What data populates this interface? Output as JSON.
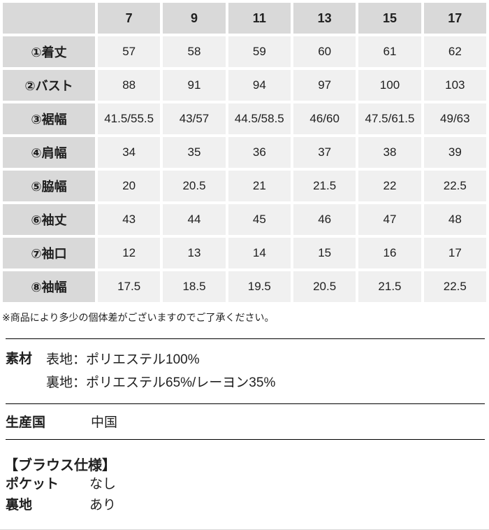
{
  "size_table": {
    "corner_label": "",
    "sizes": [
      "7",
      "9",
      "11",
      "13",
      "15",
      "17"
    ],
    "rows": [
      {
        "label": "①着丈",
        "values": [
          "57",
          "58",
          "59",
          "60",
          "61",
          "62"
        ]
      },
      {
        "label": "②バスト",
        "values": [
          "88",
          "91",
          "94",
          "97",
          "100",
          "103"
        ]
      },
      {
        "label": "③裾幅",
        "values": [
          "41.5/55.5",
          "43/57",
          "44.5/58.5",
          "46/60",
          "47.5/61.5",
          "49/63"
        ]
      },
      {
        "label": "④肩幅",
        "values": [
          "34",
          "35",
          "36",
          "37",
          "38",
          "39"
        ]
      },
      {
        "label": "⑤脇幅",
        "values": [
          "20",
          "20.5",
          "21",
          "21.5",
          "22",
          "22.5"
        ]
      },
      {
        "label": "⑥袖丈",
        "values": [
          "43",
          "44",
          "45",
          "46",
          "47",
          "48"
        ]
      },
      {
        "label": "⑦袖口",
        "values": [
          "12",
          "13",
          "14",
          "15",
          "16",
          "17"
        ]
      },
      {
        "label": "⑧袖幅",
        "values": [
          "17.5",
          "18.5",
          "19.5",
          "20.5",
          "21.5",
          "22.5"
        ]
      }
    ]
  },
  "note": "※商品により多少の個体差がございますのでご了承ください。",
  "material": {
    "label": "素材",
    "lines": [
      "表地：ポリエステル100%",
      "裏地：ポリエステル65%/レーヨン35%"
    ]
  },
  "origin": {
    "label": "生産国",
    "value": "中国"
  },
  "spec": {
    "heading": "【ブラウス仕様】",
    "items": [
      {
        "label": "ポケット",
        "value": "なし"
      },
      {
        "label": "裏地",
        "value": "あり"
      }
    ]
  },
  "colors": {
    "header_bg": "#d9d9d9",
    "cell_bg": "#f0f0f0",
    "text": "#1f1f1f",
    "rule": "#000000"
  }
}
